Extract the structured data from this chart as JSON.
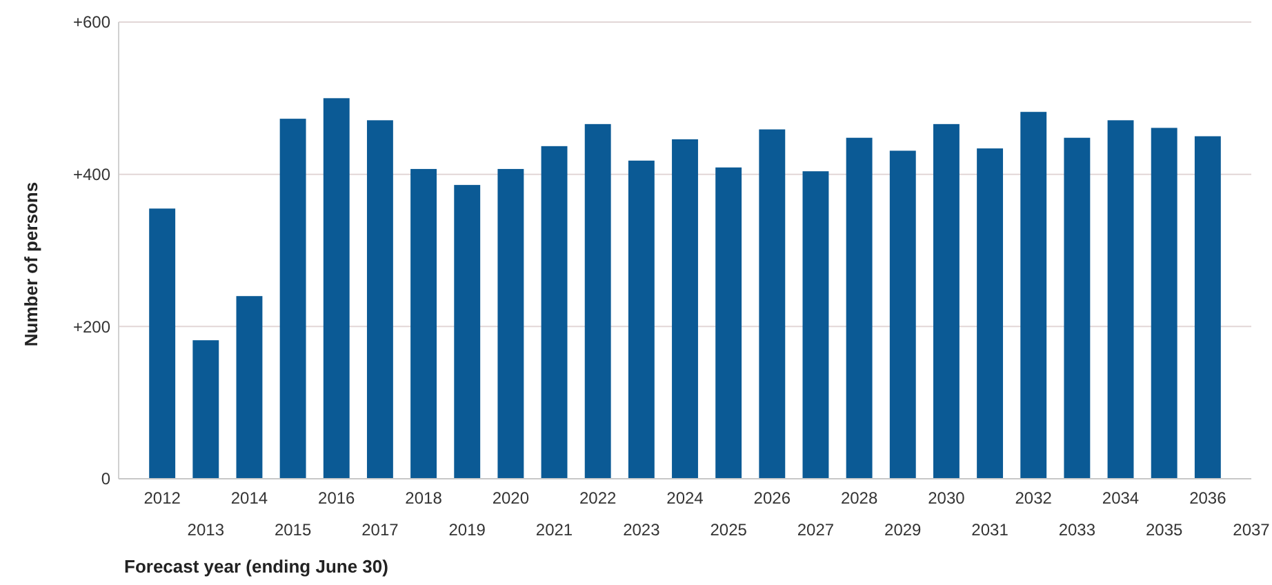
{
  "chart_data": {
    "type": "bar",
    "xlabel": "Forecast year (ending June 30)",
    "ylabel": "Number of persons",
    "categories": [
      "2012",
      "2013",
      "2014",
      "2015",
      "2016",
      "2017",
      "2018",
      "2019",
      "2020",
      "2021",
      "2022",
      "2023",
      "2024",
      "2025",
      "2026",
      "2027",
      "2028",
      "2029",
      "2030",
      "2031",
      "2032",
      "2033",
      "2034",
      "2035",
      "2036",
      "2037"
    ],
    "values": [
      355,
      182,
      240,
      473,
      500,
      471,
      407,
      386,
      407,
      437,
      466,
      418,
      446,
      409,
      459,
      404,
      448,
      431,
      466,
      434,
      482,
      448,
      471,
      461,
      450,
      null
    ],
    "color": "#0b5a95",
    "ylim": [
      0,
      600
    ],
    "yticks": [
      0,
      {
        "value": 200,
        "label": "+200"
      },
      {
        "value": 400,
        "label": "+400"
      },
      {
        "value": 600,
        "label": "+600"
      }
    ],
    "grid": "y"
  }
}
